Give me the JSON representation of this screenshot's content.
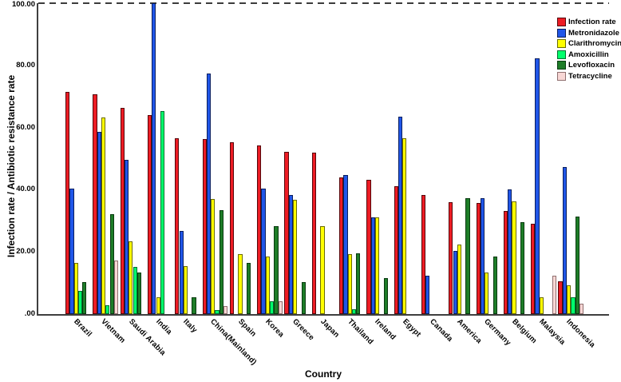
{
  "y_axis": {
    "title": "Infection rate / Antibiotic resistance rate",
    "ticks": [
      {
        "label": "100.00",
        "value": 100
      },
      {
        "label": "80.00",
        "value": 80
      },
      {
        "label": "60.00",
        "value": 60
      },
      {
        "label": "40.00",
        "value": 40
      },
      {
        "label": "20.00",
        "value": 20
      },
      {
        "label": ".00",
        "value": 0
      }
    ]
  },
  "x_axis": {
    "title": "Country"
  },
  "chart_data": {
    "type": "bar",
    "title": "",
    "xlabel": "Country",
    "ylabel": "Infection rate / Antibiotic resistance rate",
    "ylim": [
      0,
      100
    ],
    "grid": false,
    "legend_position": "top-right",
    "reference_line": {
      "value": 100,
      "style": "dashed"
    },
    "categories": [
      "Brazil",
      "Vietnam",
      "Saudi Arabia",
      "India",
      "Italy",
      "China(Mainland)",
      "Spain",
      "Korea",
      "Greece",
      "Japan",
      "Thailand",
      "Ireland",
      "Egypt",
      "Canada",
      "America",
      "Germany",
      "Belgium",
      "Malaysia",
      "Indonesia"
    ],
    "series": [
      {
        "name": "Infection rate",
        "fill": "#ED1C24",
        "border": "#55070b",
        "values": [
          71.5,
          70.7,
          66.3,
          64.0,
          56.6,
          56.3,
          55.3,
          54.2,
          52.3,
          51.9,
          44.0,
          43.2,
          41.2,
          38.4,
          36.0,
          35.7,
          33.2,
          29.0,
          10.5
        ]
      },
      {
        "name": "Metronidazole",
        "fill": "#2056E8",
        "border": "#0a1e5e",
        "values": [
          40.3,
          58.5,
          49.6,
          100.0,
          26.7,
          77.4,
          null,
          40.4,
          38.3,
          null,
          44.7,
          31.1,
          63.5,
          12.3,
          20.4,
          37.3,
          40.1,
          82.3,
          47.3
        ]
      },
      {
        "name": "Clarithromycin",
        "fill": "#FFFF00",
        "border": "#6b6b00",
        "values": [
          16.5,
          63.2,
          23.4,
          5.4,
          15.4,
          37.0,
          19.3,
          18.4,
          36.8,
          28.3,
          19.3,
          31.1,
          56.6,
          null,
          22.5,
          13.4,
          36.2,
          5.4,
          9.3
        ]
      },
      {
        "name": "Amoxicillin",
        "fill": "#00FF6C",
        "border": "#006e2e",
        "values": [
          7.4,
          2.8,
          15.3,
          65.3,
          null,
          1.4,
          null,
          4.2,
          null,
          null,
          1.5,
          null,
          null,
          null,
          null,
          null,
          null,
          null,
          5.4
        ]
      },
      {
        "name": "Levofloxacin",
        "fill": "#1E7D28",
        "border": "#093a10",
        "values": [
          10.3,
          32.1,
          13.5,
          null,
          5.4,
          33.4,
          16.5,
          28.3,
          10.3,
          null,
          19.5,
          11.6,
          null,
          null,
          37.3,
          18.5,
          29.6,
          null,
          31.4
        ]
      },
      {
        "name": "Tetracycline",
        "fill": "#F8D7D5",
        "border": "#8f6f6f",
        "values": [
          null,
          17.2,
          null,
          null,
          null,
          2.6,
          null,
          4.2,
          null,
          null,
          null,
          null,
          null,
          null,
          null,
          null,
          null,
          12.3,
          3.3
        ]
      }
    ]
  }
}
